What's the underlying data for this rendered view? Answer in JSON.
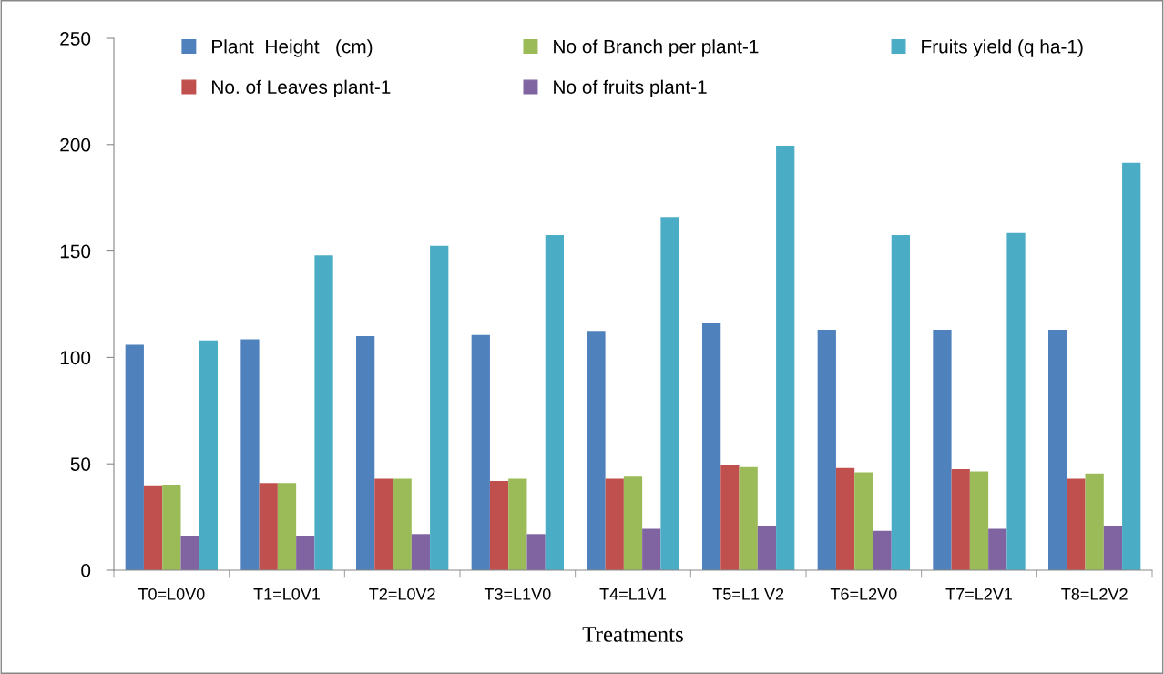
{
  "chart_data": {
    "type": "bar",
    "xlabel": "Treatments",
    "categories": [
      "T0=L0V0",
      "T1=L0V1",
      "T2=L0V2",
      "T3=L1V0",
      "T4=L1V1",
      "T5=L1 V2",
      "T6=L2V0",
      "T7=L2V1",
      "T8=L2V2"
    ],
    "series": [
      {
        "name": "Plant  Height   (cm)",
        "color": "#4f81bd",
        "values": [
          106,
          108.5,
          110,
          110.5,
          112.5,
          116,
          113,
          113,
          113
        ]
      },
      {
        "name": "No. of Leaves plant-1",
        "color": "#c0504d",
        "values": [
          39.5,
          41,
          43,
          42,
          43,
          49.5,
          48,
          47.5,
          43
        ]
      },
      {
        "name": "No of Branch per plant-1",
        "color": "#9bbb59",
        "values": [
          40,
          41,
          43,
          43,
          44,
          48.5,
          46,
          46.5,
          45.5
        ]
      },
      {
        "name": "No of fruits plant-1",
        "color": "#8064a2",
        "values": [
          16,
          16,
          17,
          17,
          19.5,
          21,
          18.5,
          19.5,
          20.5
        ]
      },
      {
        "name": "Fruits yield (q ha-1)",
        "color": "#4bacc6",
        "values": [
          108,
          148,
          152.5,
          157.5,
          166,
          199.5,
          157.5,
          158.5,
          191.5
        ]
      }
    ],
    "ylim": [
      0,
      250
    ],
    "yticks": [
      0,
      50,
      100,
      150,
      200,
      250
    ],
    "grid": false,
    "legend": "top"
  }
}
